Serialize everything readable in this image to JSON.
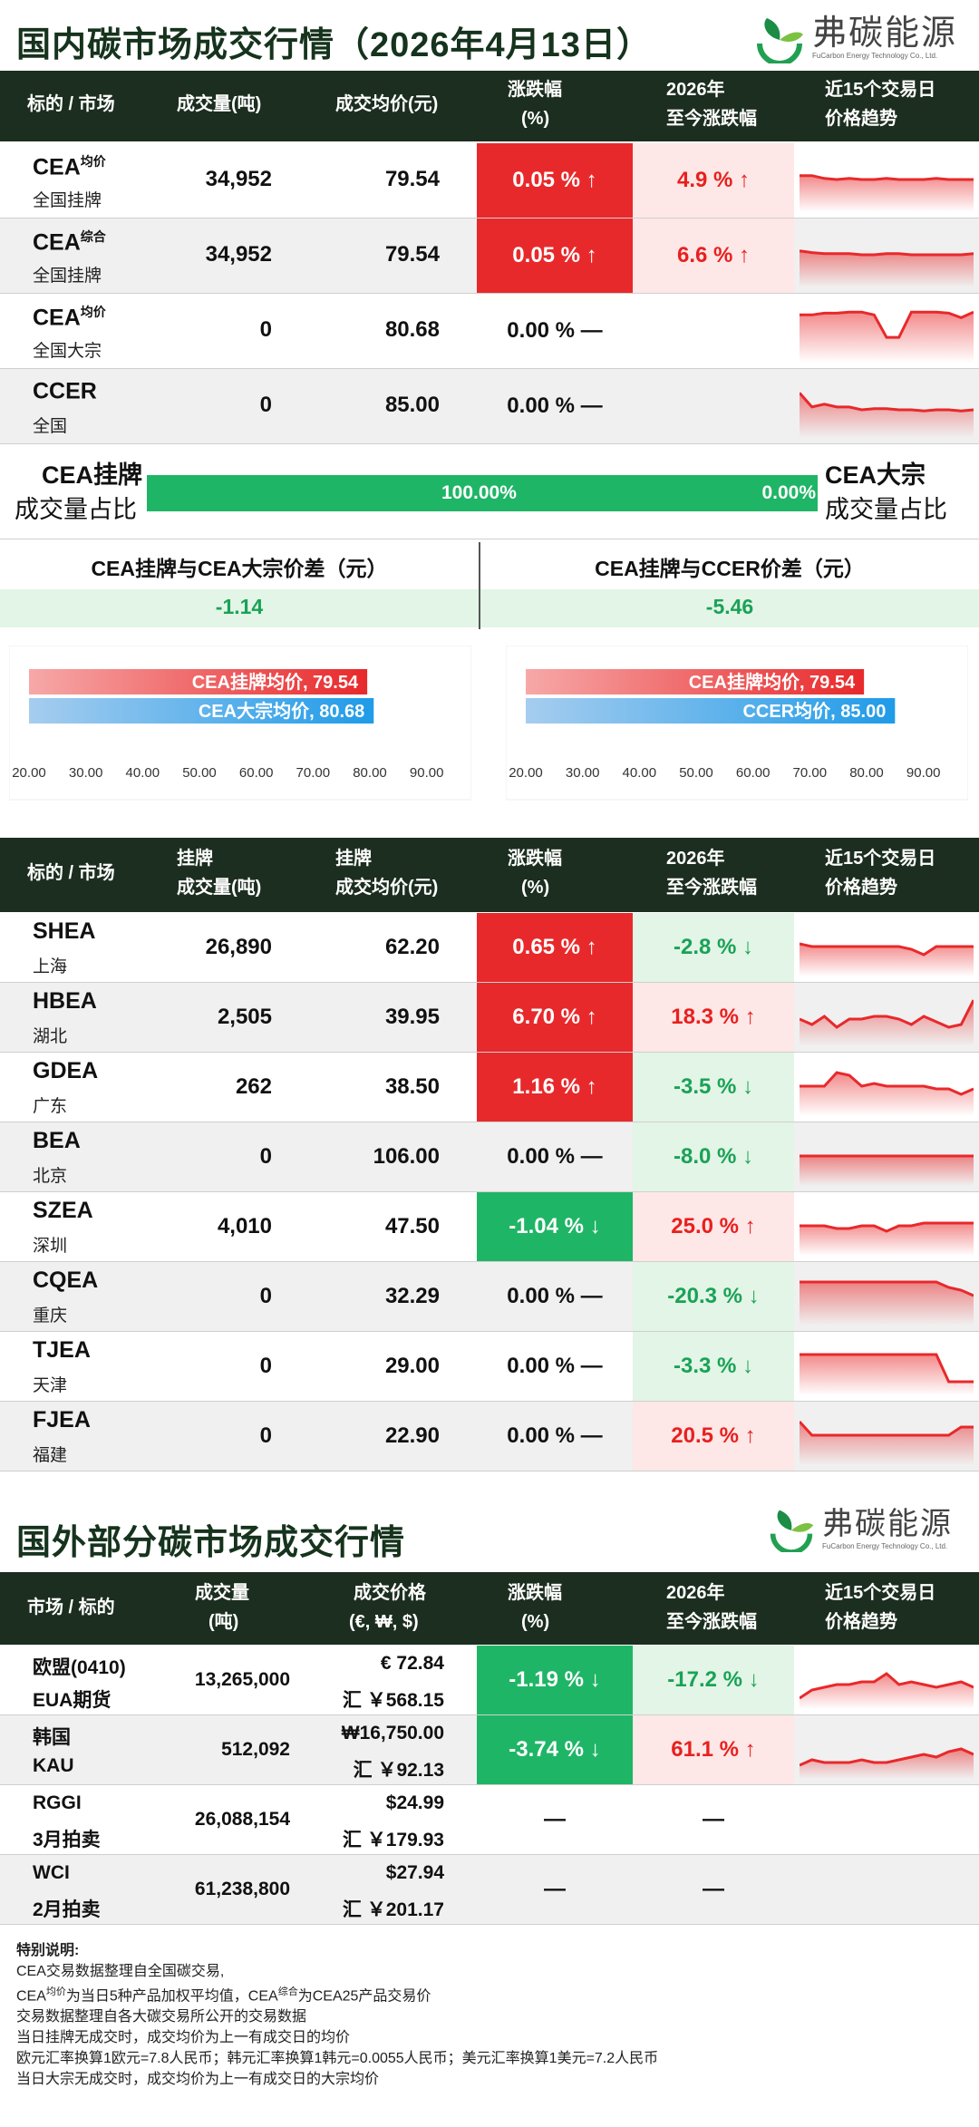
{
  "title1": "国内碳市场成交行情（2026年4月13日）",
  "title2": "国外部分碳市场成交行情",
  "logo": {
    "name": "弗碳能源",
    "sub": "FuCarbon Energy Technology Co., Ltd."
  },
  "h1": {
    "c1": "标的 / 市场",
    "c2": "成交量(吨)",
    "c3": "成交均价(元)",
    "c4a": "涨跌幅",
    "c4b": "(%)",
    "c5a": "2026年",
    "c5b": "至今涨跌幅",
    "c6a": "近15个交易日",
    "c6b": "价格趋势"
  },
  "cea": [
    {
      "name": "CEA",
      "sup": "均价",
      "sub": "全国挂牌",
      "vol": "34,952",
      "price": "79.54",
      "chg": "0.05 % ↑",
      "ytd": "4.9 % ↑"
    },
    {
      "name": "CEA",
      "sup": "综合",
      "sub": "全国挂牌",
      "vol": "34,952",
      "price": "79.54",
      "chg": "0.05 % ↑",
      "ytd": "6.6 % ↑"
    },
    {
      "name": "CEA",
      "sup": "均价",
      "sub": "全国大宗",
      "vol": "0",
      "price": "80.68",
      "chg": "0.00 % —",
      "ytd": ""
    },
    {
      "name": "CCER",
      "sup": "",
      "sub": "全国",
      "vol": "0",
      "price": "85.00",
      "chg": "0.00 % —",
      "ytd": ""
    }
  ],
  "ratio": {
    "l1": "CEA挂牌",
    "l2": "成交量占比",
    "r1": "CEA大宗",
    "r2": "成交量占比",
    "v1": "100.00%",
    "v2": "0.00%",
    "share": 1.0
  },
  "diff": {
    "h1": "CEA挂牌与CEA大宗价差（元）",
    "v1": "-1.14",
    "h2": "CEA挂牌与CCER价差（元）",
    "v2": "-5.46"
  },
  "bars": {
    "c1": {
      "a": "CEA挂牌均价, 79.54",
      "b": "CEA大宗均价, 80.68",
      "av": 79.54,
      "bv": 80.68
    },
    "c2": {
      "a": "CEA挂牌均价, 79.54",
      "b": "CCER均价, 85.00",
      "av": 79.54,
      "bv": 85.0
    },
    "ticks": [
      "20.00",
      "30.00",
      "40.00",
      "50.00",
      "60.00",
      "70.00",
      "80.00",
      "90.00"
    ],
    "range": [
      20,
      95
    ]
  },
  "h2": {
    "c1": "标的 / 市场",
    "c2a": "挂牌",
    "c2b": "成交量(吨)",
    "c3a": "挂牌",
    "c3b": "成交均价(元)",
    "c4a": "涨跌幅",
    "c4b": "(%)",
    "c5a": "2026年",
    "c5b": "至今涨跌幅",
    "c6a": "近15个交易日",
    "c6b": "价格趋势"
  },
  "local": [
    {
      "name": "SHEA",
      "sub": "上海",
      "vol": "26,890",
      "price": "62.20",
      "chg": "0.65 % ↑",
      "ytd": "-2.8 % ↓"
    },
    {
      "name": "HBEA",
      "sub": "湖北",
      "vol": "2,505",
      "price": "39.95",
      "chg": "6.70 % ↑",
      "ytd": "18.3 % ↑"
    },
    {
      "name": "GDEA",
      "sub": "广东",
      "vol": "262",
      "price": "38.50",
      "chg": "1.16 % ↑",
      "ytd": "-3.5 % ↓"
    },
    {
      "name": "BEA",
      "sub": "北京",
      "vol": "0",
      "price": "106.00",
      "chg": "0.00 % —",
      "ytd": "-8.0 % ↓"
    },
    {
      "name": "SZEA",
      "sub": "深圳",
      "vol": "4,010",
      "price": "47.50",
      "chg": "-1.04 % ↓",
      "ytd": "25.0 % ↑"
    },
    {
      "name": "CQEA",
      "sub": "重庆",
      "vol": "0",
      "price": "32.29",
      "chg": "0.00 % —",
      "ytd": "-20.3 % ↓"
    },
    {
      "name": "TJEA",
      "sub": "天津",
      "vol": "0",
      "price": "29.00",
      "chg": "0.00 % —",
      "ytd": "-3.3 % ↓"
    },
    {
      "name": "FJEA",
      "sub": "福建",
      "vol": "0",
      "price": "22.90",
      "chg": "0.00 % —",
      "ytd": "20.5 % ↑"
    }
  ],
  "h3": {
    "c1": "市场 / 标的",
    "c2a": "成交量",
    "c2b": "(吨)",
    "c3a": "成交价格",
    "c3b": "(€, ₩, $)",
    "c4a": "涨跌幅",
    "c4b": "(%)",
    "c5a": "2026年",
    "c5b": "至今涨跌幅",
    "c6a": "近15个交易日",
    "c6b": "价格趋势"
  },
  "intl": [
    {
      "n1": "欧盟(0410)",
      "n2": "EUA期货",
      "vol": "13,265,000",
      "p1": "€ 72.84",
      "p2": "汇 ￥568.15",
      "chg": "-1.19 % ↓",
      "ytd": "-17.2 % ↓"
    },
    {
      "n1": "韩国",
      "n2": "KAU",
      "vol": "512,092",
      "p1": "₩16,750.00",
      "p2": "汇 ￥92.13",
      "chg": "-3.74 % ↓",
      "ytd": "61.1 % ↑"
    },
    {
      "n1": "RGGI",
      "n2": "3月拍卖",
      "vol": "26,088,154",
      "p1": "$24.99",
      "p2": "汇 ￥179.93",
      "chg": "—",
      "ytd": "—"
    },
    {
      "n1": "WCI",
      "n2": "2月拍卖",
      "vol": "61,238,800",
      "p1": "$27.94",
      "p2": "汇 ￥201.17",
      "chg": "—",
      "ytd": "—"
    }
  ],
  "notes": {
    "title": "特别说明:",
    "l1": "CEA交易数据整理自全国碳交易,",
    "l2a": "CEA",
    "l2s1": "均价",
    "l2b": "为当日5种产品加权平均值，CEA",
    "l2s2": "综合",
    "l2c": "为CEA25产品交易价",
    "l3": "交易数据整理自各大碳交易所公开的交易数据",
    "l4": "当日挂牌无成交时，成交均价为上一有成交日的均价",
    "l5": "欧元汇率换算1欧元=7.8人民币；韩元汇率换算1韩元=0.0055人民币；美元汇率换算1美元=7.2人民币",
    "l6": "当日大宗无成交时，成交均价为上一有成交日的大宗均价"
  },
  "colors": {
    "red": "#e8292b",
    "green": "#1fb566",
    "header": "#1c2e1f"
  }
}
